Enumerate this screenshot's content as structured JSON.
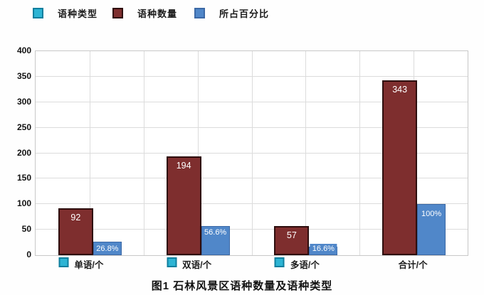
{
  "title": "图1 石林风景区语种数量及语种类型",
  "legend": {
    "items": [
      {
        "label": "语种类型",
        "color": "#2db4d4",
        "border": "#0f7f9e"
      },
      {
        "label": "语种数量",
        "color": "#7e2e2e",
        "border": "#2e0e0e"
      },
      {
        "label": "所占百分比",
        "color": "#5087c9",
        "border": "#3c69a6"
      }
    ]
  },
  "chart_data": {
    "type": "bar",
    "categories": [
      "单语/个",
      "双语/个",
      "多语/个",
      "合计/个"
    ],
    "category_marker_shown": [
      true,
      true,
      true,
      false
    ],
    "category_marker_color": "#2db4d4",
    "category_marker_border": "#0f7f9e",
    "series": [
      {
        "name": "语种数量",
        "values": [
          92,
          194,
          57,
          343
        ],
        "labels": [
          "92",
          "194",
          "57",
          "343"
        ],
        "color": "#7e2e2e",
        "border": "#2e0e0e"
      },
      {
        "name": "所占百分比",
        "values": [
          26.8,
          56.6,
          16.6,
          100
        ],
        "labels": [
          "26.8%",
          "56.6%",
          "16.6%",
          "100%"
        ],
        "color": "#5087c9",
        "border": "#3c69a6"
      }
    ],
    "xlabel": "",
    "ylabel": "",
    "ylim": [
      0,
      400
    ],
    "yticks": [
      0,
      50,
      100,
      150,
      200,
      250,
      300,
      350,
      400
    ],
    "grid": "both",
    "legend_position": "top"
  }
}
